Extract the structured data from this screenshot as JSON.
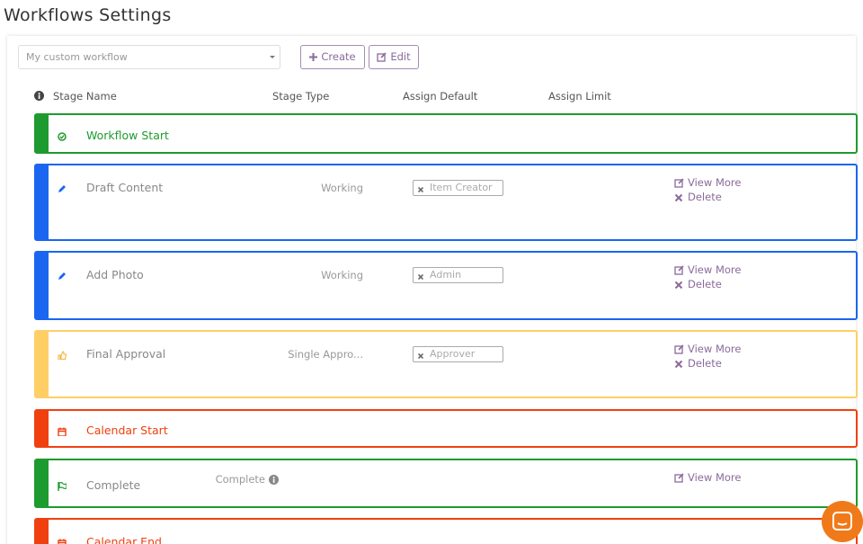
{
  "header": {
    "title": "Workflows Settings"
  },
  "toolbar": {
    "select": "My custom workflow",
    "create": "Create",
    "edit": "Edit"
  },
  "columns": [
    "Stage Name",
    "Stage Type",
    "Assign Default",
    "Assign Limit"
  ],
  "stages": [
    {
      "name": "Workflow Start"
    },
    {
      "name": "Draft Content",
      "type": "Working",
      "assignees": [
        "Item Creator"
      ],
      "actions": [
        "View More",
        "Delete"
      ]
    },
    {
      "name": "Add Photo",
      "type": "Working",
      "assignees": [
        "Admin"
      ],
      "actions": [
        "View More",
        "Delete"
      ]
    },
    {
      "name": "Final Approval",
      "type": "Single Appro...",
      "assignees": [
        "Approver"
      ],
      "actions": [
        "View More",
        "Delete"
      ]
    },
    {
      "name": "Calendar Start"
    },
    {
      "name": "Complete",
      "type": "Complete",
      "actions": [
        "View More"
      ]
    },
    {
      "name": "Calendar End"
    }
  ]
}
